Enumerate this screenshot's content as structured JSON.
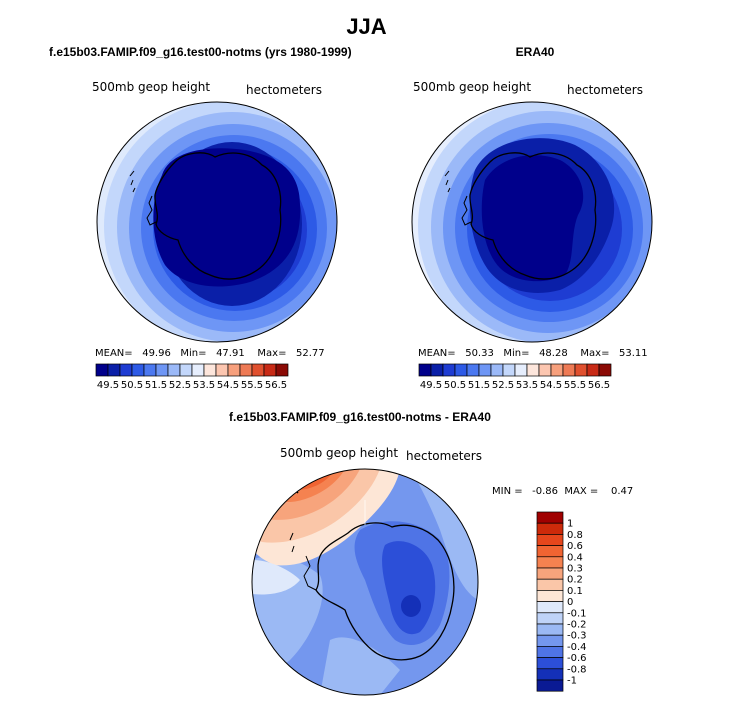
{
  "title": "JJA",
  "panels": [
    {
      "title": "f.e15b03.FAMIP.f09_g16.test00-notms (yrs 1980-1999)",
      "field_label": "500mb geop height",
      "units_label": "hectometers",
      "stats": {
        "mean_label": "MEAN=",
        "mean": "49.96",
        "min_label": "Min=",
        "min": "47.91",
        "max_label": "Max=",
        "max": "52.77"
      }
    },
    {
      "title": "ERA40",
      "field_label": "500mb geop height",
      "units_label": "hectometers",
      "stats": {
        "mean_label": "MEAN=",
        "mean": "50.33",
        "min_label": "Min=",
        "min": "48.28",
        "max_label": "Max=",
        "max": "53.11"
      }
    },
    {
      "title": "f.e15b03.FAMIP.f09_g16.test00-notms - ERA40",
      "field_label": "500mb geop height",
      "units_label": "hectometers",
      "stats": {
        "text": "MIN =   -0.86  MAX =    0.47"
      }
    }
  ],
  "colorbar_horizontal": {
    "ticks": [
      "49.5",
      "50.5",
      "51.5",
      "52.5",
      "53.5",
      "54.5",
      "55.5",
      "56.5"
    ],
    "colors": [
      "#00008b",
      "#0a1fa8",
      "#1e3cd2",
      "#2d5ae6",
      "#4b78f0",
      "#6e96f5",
      "#9bb9f8",
      "#c3d7fb",
      "#e6eefd",
      "#fde6dc",
      "#fcc6b0",
      "#f7a07d",
      "#ee7a55",
      "#e0502f",
      "#c82a16",
      "#8b0a05"
    ]
  },
  "colorbar_vertical": {
    "ticks": [
      "1",
      "0.8",
      "0.6",
      "0.4",
      "0.3",
      "0.2",
      "0.1",
      "0",
      "-0.1",
      "-0.2",
      "-0.3",
      "-0.4",
      "-0.6",
      "-0.8",
      "-1"
    ],
    "colors": [
      "#a00000",
      "#cd2a0a",
      "#e6461c",
      "#f06432",
      "#f58250",
      "#f7a47c",
      "#fac6a8",
      "#fde6d6",
      "#dfe9fb",
      "#bfd3f8",
      "#9bb9f4",
      "#7497ee",
      "#4f74e6",
      "#2c4fd8",
      "#1430b8",
      "#0a1a94"
    ]
  },
  "chart_data": [
    {
      "type": "heatmap",
      "title": "f.e15b03.FAMIP.f09_g16.test00-notms (yrs 1980-1999)",
      "projection": "south polar stereographic",
      "variable": "500mb geop height",
      "units": "hectometers",
      "mean": 49.96,
      "min": 47.91,
      "max": 52.77,
      "contour_levels": [
        49.5,
        50.0,
        50.5,
        51.0,
        51.5,
        52.0,
        52.5,
        53.0,
        53.5,
        54.0,
        54.5,
        55.0,
        55.5,
        56.0,
        56.5
      ]
    },
    {
      "type": "heatmap",
      "title": "ERA40",
      "projection": "south polar stereographic",
      "variable": "500mb geop height",
      "units": "hectometers",
      "mean": 50.33,
      "min": 48.28,
      "max": 53.11,
      "contour_levels": [
        49.5,
        50.0,
        50.5,
        51.0,
        51.5,
        52.0,
        52.5,
        53.0,
        53.5,
        54.0,
        54.5,
        55.0,
        55.5,
        56.0,
        56.5
      ]
    },
    {
      "type": "heatmap",
      "title": "f.e15b03.FAMIP.f09_g16.test00-notms - ERA40",
      "projection": "south polar stereographic",
      "variable": "500mb geop height",
      "units": "hectometers",
      "min": -0.86,
      "max": 0.47,
      "contour_levels": [
        -1,
        -0.8,
        -0.6,
        -0.4,
        -0.3,
        -0.2,
        -0.1,
        0,
        0.1,
        0.2,
        0.3,
        0.4,
        0.6,
        0.8,
        1
      ]
    }
  ]
}
